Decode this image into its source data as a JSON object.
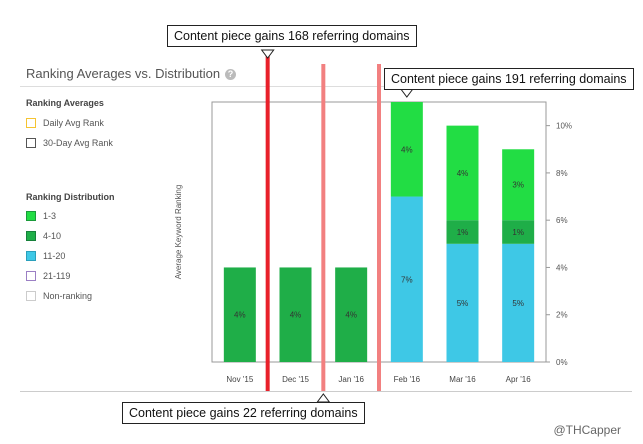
{
  "header": {
    "title": "Ranking Averages vs. Distribution",
    "help_icon": "help-icon"
  },
  "legend": {
    "averages_heading": "Ranking Averages",
    "averages": [
      {
        "label": "Daily Avg Rank",
        "color": "#f5c431"
      },
      {
        "label": "30-Day Avg Rank",
        "color": "#555555"
      }
    ],
    "distribution_heading": "Ranking Distribution",
    "distribution": [
      {
        "label": "1-3",
        "color": "#22dd44"
      },
      {
        "label": "4-10",
        "color": "#1fae48"
      },
      {
        "label": "11-20",
        "color": "#3ec8e6"
      },
      {
        "label": "21-119",
        "color": "#9b7fc4"
      },
      {
        "label": "Non-ranking",
        "color": "#cccccc"
      }
    ]
  },
  "callouts": {
    "top": "Content piece gains 168 referring domains",
    "right": "Content piece gains 191 referring domains",
    "bottom": "Content piece gains 22 referring domains"
  },
  "credit": "@THCapper",
  "chart_data": {
    "type": "bar",
    "stacked": true,
    "categories": [
      "Nov '15",
      "Dec '15",
      "Jan '16",
      "Feb '16",
      "Mar '16",
      "Apr '16"
    ],
    "series": [
      {
        "name": "11-20",
        "color": "#3ec8e6",
        "values": [
          0,
          0,
          0,
          7,
          5,
          5
        ],
        "labels": [
          "",
          "",
          "",
          "7%",
          "5%",
          "5%"
        ]
      },
      {
        "name": "4-10",
        "color": "#1fae48",
        "values": [
          4,
          4,
          4,
          0,
          1,
          1
        ],
        "labels": [
          "4%",
          "4%",
          "4%",
          "",
          "1%",
          "1%"
        ]
      },
      {
        "name": "1-3",
        "color": "#22dd44",
        "values": [
          0,
          0,
          0,
          4,
          4,
          3
        ],
        "labels": [
          "",
          "",
          "",
          "4%",
          "4%",
          "3%"
        ]
      }
    ],
    "ylabel": "Average Keyword Ranking",
    "y2_ticks": [
      "0%",
      "2%",
      "4%",
      "6%",
      "8%",
      "10%"
    ],
    "y2lim": [
      0,
      11
    ],
    "event_markers": [
      {
        "between": [
          "Nov '15",
          "Dec '15"
        ],
        "color": "#e8202a"
      },
      {
        "between": [
          "Dec '15",
          "Jan '16"
        ],
        "color": "#f28080"
      },
      {
        "between": [
          "Jan '16",
          "Feb '16"
        ],
        "color": "#f28080"
      }
    ]
  }
}
